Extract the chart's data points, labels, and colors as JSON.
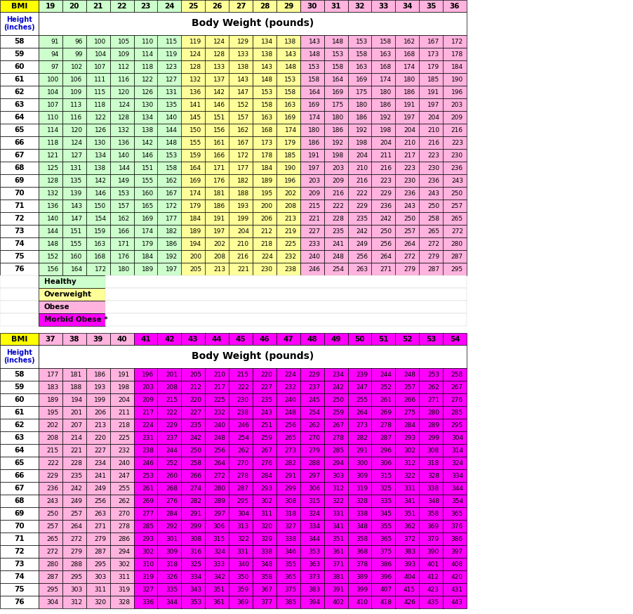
{
  "heights": [
    58,
    59,
    60,
    61,
    62,
    63,
    64,
    65,
    66,
    67,
    68,
    69,
    70,
    71,
    72,
    73,
    74,
    75,
    76
  ],
  "bmi_top": [
    19,
    20,
    21,
    22,
    23,
    24,
    25,
    26,
    27,
    28,
    29,
    30,
    31,
    32,
    33,
    34,
    35,
    36
  ],
  "bmi_bottom": [
    37,
    38,
    39,
    40,
    41,
    42,
    43,
    44,
    45,
    46,
    47,
    48,
    49,
    50,
    51,
    52,
    53,
    54
  ],
  "data_top": [
    [
      91,
      96,
      100,
      105,
      110,
      115,
      119,
      124,
      129,
      134,
      138,
      143,
      148,
      153,
      158,
      162,
      167,
      172
    ],
    [
      94,
      99,
      104,
      109,
      114,
      119,
      124,
      128,
      133,
      138,
      143,
      148,
      153,
      158,
      163,
      168,
      173,
      178
    ],
    [
      97,
      102,
      107,
      112,
      118,
      123,
      128,
      133,
      138,
      143,
      148,
      153,
      158,
      163,
      168,
      174,
      179,
      184
    ],
    [
      100,
      106,
      111,
      116,
      122,
      127,
      132,
      137,
      143,
      148,
      153,
      158,
      164,
      169,
      174,
      180,
      185,
      190
    ],
    [
      104,
      109,
      115,
      120,
      126,
      131,
      136,
      142,
      147,
      153,
      158,
      164,
      169,
      175,
      180,
      186,
      191,
      196
    ],
    [
      107,
      113,
      118,
      124,
      130,
      135,
      141,
      146,
      152,
      158,
      163,
      169,
      175,
      180,
      186,
      191,
      197,
      203
    ],
    [
      110,
      116,
      122,
      128,
      134,
      140,
      145,
      151,
      157,
      163,
      169,
      174,
      180,
      186,
      192,
      197,
      204,
      209
    ],
    [
      114,
      120,
      126,
      132,
      138,
      144,
      150,
      156,
      162,
      168,
      174,
      180,
      186,
      192,
      198,
      204,
      210,
      216
    ],
    [
      118,
      124,
      130,
      136,
      142,
      148,
      155,
      161,
      167,
      173,
      179,
      186,
      192,
      198,
      204,
      210,
      216,
      223
    ],
    [
      121,
      127,
      134,
      140,
      146,
      153,
      159,
      166,
      172,
      178,
      185,
      191,
      198,
      204,
      211,
      217,
      223,
      230
    ],
    [
      125,
      131,
      138,
      144,
      151,
      158,
      164,
      171,
      177,
      184,
      190,
      197,
      203,
      210,
      216,
      223,
      230,
      236
    ],
    [
      128,
      135,
      142,
      149,
      155,
      162,
      169,
      176,
      182,
      189,
      196,
      203,
      209,
      216,
      223,
      230,
      236,
      243
    ],
    [
      132,
      139,
      146,
      153,
      160,
      167,
      174,
      181,
      188,
      195,
      202,
      209,
      216,
      222,
      229,
      236,
      243,
      250
    ],
    [
      136,
      143,
      150,
      157,
      165,
      172,
      179,
      186,
      193,
      200,
      208,
      215,
      222,
      229,
      236,
      243,
      250,
      257
    ],
    [
      140,
      147,
      154,
      162,
      169,
      177,
      184,
      191,
      199,
      206,
      213,
      221,
      228,
      235,
      242,
      250,
      258,
      265
    ],
    [
      144,
      151,
      159,
      166,
      174,
      182,
      189,
      197,
      204,
      212,
      219,
      227,
      235,
      242,
      250,
      257,
      265,
      272
    ],
    [
      148,
      155,
      163,
      171,
      179,
      186,
      194,
      202,
      210,
      218,
      225,
      233,
      241,
      249,
      256,
      264,
      272,
      280
    ],
    [
      152,
      160,
      168,
      176,
      184,
      192,
      200,
      208,
      216,
      224,
      232,
      240,
      248,
      256,
      264,
      272,
      279,
      287
    ],
    [
      156,
      164,
      172,
      180,
      189,
      197,
      205,
      213,
      221,
      230,
      238,
      246,
      254,
      263,
      271,
      279,
      287,
      295
    ]
  ],
  "data_bottom": [
    [
      177,
      181,
      186,
      191,
      196,
      201,
      205,
      210,
      215,
      220,
      224,
      229,
      234,
      239,
      244,
      248,
      253,
      258
    ],
    [
      183,
      188,
      193,
      198,
      203,
      208,
      212,
      217,
      222,
      227,
      232,
      237,
      242,
      247,
      252,
      257,
      262,
      267
    ],
    [
      189,
      194,
      199,
      204,
      209,
      215,
      220,
      225,
      230,
      235,
      240,
      245,
      250,
      255,
      261,
      266,
      271,
      276
    ],
    [
      195,
      201,
      206,
      211,
      217,
      222,
      227,
      232,
      238,
      243,
      248,
      254,
      259,
      264,
      269,
      275,
      280,
      285
    ],
    [
      202,
      207,
      213,
      218,
      224,
      229,
      235,
      240,
      246,
      251,
      256,
      262,
      267,
      273,
      278,
      284,
      289,
      295
    ],
    [
      208,
      214,
      220,
      225,
      231,
      237,
      242,
      248,
      254,
      259,
      265,
      270,
      278,
      282,
      287,
      293,
      299,
      304
    ],
    [
      215,
      221,
      227,
      232,
      238,
      244,
      250,
      256,
      262,
      267,
      273,
      279,
      285,
      291,
      296,
      302,
      308,
      314
    ],
    [
      222,
      228,
      234,
      240,
      246,
      252,
      258,
      264,
      270,
      276,
      282,
      288,
      294,
      300,
      306,
      312,
      318,
      324
    ],
    [
      229,
      235,
      241,
      247,
      253,
      260,
      266,
      272,
      278,
      284,
      291,
      297,
      303,
      309,
      315,
      322,
      328,
      334
    ],
    [
      236,
      242,
      249,
      255,
      261,
      268,
      274,
      280,
      287,
      293,
      299,
      306,
      312,
      319,
      325,
      331,
      338,
      344
    ],
    [
      243,
      249,
      256,
      262,
      269,
      276,
      282,
      289,
      295,
      302,
      308,
      315,
      322,
      328,
      335,
      341,
      348,
      354
    ],
    [
      250,
      257,
      263,
      270,
      277,
      284,
      291,
      297,
      304,
      311,
      318,
      324,
      331,
      338,
      345,
      351,
      358,
      365
    ],
    [
      257,
      264,
      271,
      278,
      285,
      292,
      299,
      306,
      313,
      320,
      327,
      334,
      341,
      348,
      355,
      362,
      369,
      376
    ],
    [
      265,
      272,
      279,
      286,
      293,
      301,
      308,
      315,
      322,
      329,
      338,
      344,
      351,
      358,
      365,
      372,
      379,
      386
    ],
    [
      272,
      279,
      287,
      294,
      302,
      309,
      316,
      324,
      331,
      338,
      346,
      353,
      361,
      368,
      375,
      383,
      390,
      397
    ],
    [
      280,
      288,
      295,
      302,
      310,
      318,
      325,
      333,
      340,
      348,
      355,
      363,
      371,
      378,
      386,
      393,
      401,
      408
    ],
    [
      287,
      295,
      303,
      311,
      319,
      326,
      334,
      342,
      350,
      358,
      365,
      373,
      381,
      389,
      396,
      404,
      412,
      420
    ],
    [
      295,
      303,
      311,
      319,
      327,
      335,
      343,
      351,
      359,
      367,
      375,
      383,
      391,
      399,
      407,
      415,
      423,
      431
    ],
    [
      304,
      312,
      320,
      328,
      336,
      344,
      353,
      361,
      369,
      377,
      385,
      394,
      402,
      410,
      418,
      426,
      435,
      443
    ]
  ],
  "color_healthy": "#ccffcc",
  "color_overweight": "#ffff99",
  "color_obese": "#ffb3de",
  "color_morbid": "#ff00ff",
  "color_yellow": "#ffff00",
  "legend_items": [
    {
      "label": "Healthy",
      "color": "#ccffcc"
    },
    {
      "label": "Overweight",
      "color": "#ffff99"
    },
    {
      "label": "Obese",
      "color": "#ffb3de"
    },
    {
      "label": "Morbid Obese *",
      "color": "#ff00ff"
    }
  ]
}
